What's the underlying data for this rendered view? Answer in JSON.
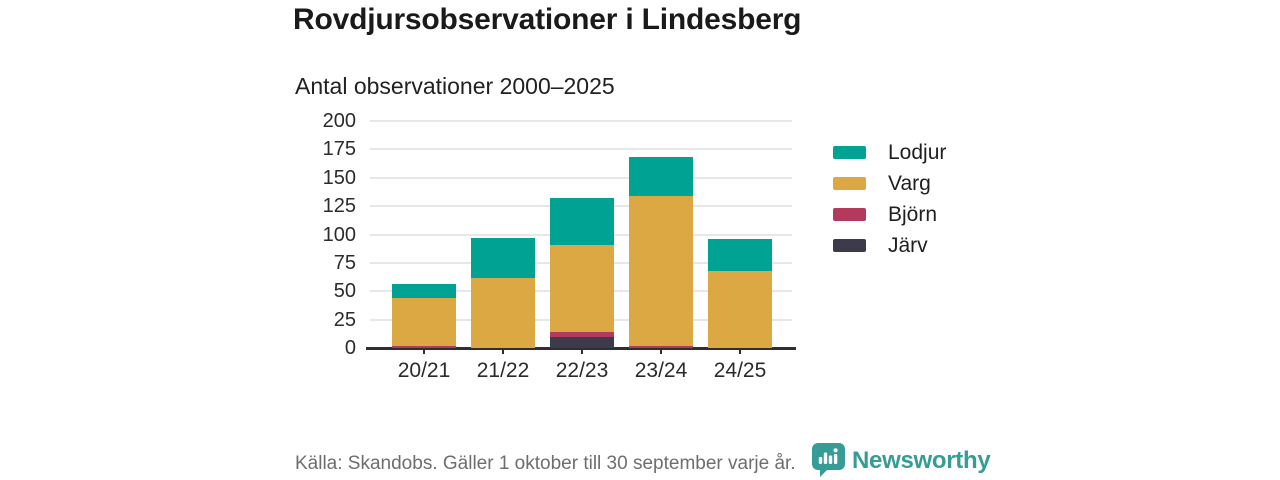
{
  "header": {
    "title": "Rovdjursobservationer i Lindesberg"
  },
  "chart_data": {
    "type": "bar",
    "stacked": true,
    "title": "Rovdjursobservationer i Lindesberg",
    "subtitle": "Antal observationer 2000–2025",
    "categories": [
      "20/21",
      "21/22",
      "22/23",
      "23/24",
      "24/25"
    ],
    "series": [
      {
        "name": "Lodjur",
        "color": "#00A294",
        "values": [
          12,
          35,
          41,
          34,
          28
        ]
      },
      {
        "name": "Varg",
        "color": "#DBA844",
        "values": [
          42,
          62,
          77,
          132,
          68
        ]
      },
      {
        "name": "Björn",
        "color": "#B23A5D",
        "values": [
          2,
          0,
          4,
          2,
          0
        ]
      },
      {
        "name": "Järv",
        "color": "#3D3A4B",
        "values": [
          0,
          0,
          10,
          0,
          0
        ]
      }
    ],
    "stack_order_bottom_to_top": [
      "Järv",
      "Björn",
      "Varg",
      "Lodjur"
    ],
    "xlabel": "",
    "ylabel": "",
    "ylim": [
      0,
      200
    ],
    "yticks": [
      0,
      25,
      50,
      75,
      100,
      125,
      150,
      175,
      200
    ],
    "grid": true,
    "legend_position": "right"
  },
  "footer": {
    "source": "Källa: Skandobs. Gäller 1 oktober till 30 september varje år.",
    "brand": "Newsworthy"
  },
  "colors": {
    "axis": "#2F2F2F",
    "gridline": "#E7E7E7",
    "title_text": "#1A1A1A",
    "body_text": "#2B2B2B",
    "muted_text": "#6E6E6E",
    "brand_teal": "#379B96"
  }
}
